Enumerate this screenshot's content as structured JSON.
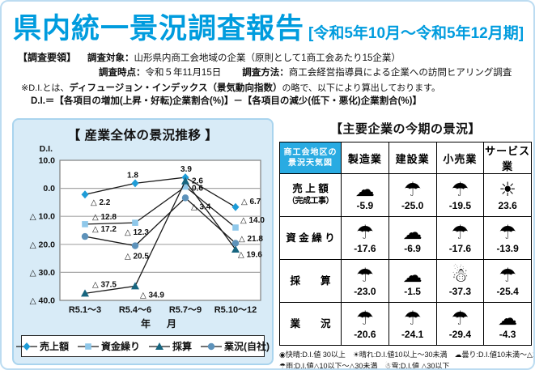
{
  "header": {
    "title": "県内統一景況調査報告",
    "period": "[令和5年10月～令和5年12月期]"
  },
  "survey": {
    "heading": "【調査要領】",
    "target_label": "調査対象：",
    "target_value": "山形県内商工会地域の企業（原則として1商工会あたり15企業）",
    "time_label": "調査時点：",
    "time_value": "令和５年11月15日",
    "method_label": "調査方法：",
    "method_value": "商工会経営指導員による企業への訪問ヒアリング調査"
  },
  "di_note": {
    "line1_prefix": "※D.I.とは、",
    "line1_bold": "ディフュージョン・インデックス（景気動向指数）",
    "line1_suffix": "の略で、以下により算出しております。",
    "formula": "D.I.＝【各項目の増加(上昇・好転)企業割合(%)】－【各項目の減少(低下・悪化)企業割合(%)】"
  },
  "chart_data": {
    "type": "line",
    "title": "【 産業全体の景況推移 】",
    "y_axis_label": "D.I.",
    "x_axis_label": "年　月",
    "categories": [
      "R5.1～3",
      "R5.4～6",
      "R5.7～9",
      "R5.10～12"
    ],
    "ylim": [
      -40,
      10
    ],
    "grid": true,
    "legend_position": "bottom",
    "y_ticks": [
      {
        "value": 10,
        "label": "10.0"
      },
      {
        "value": 0,
        "label": "0.0"
      },
      {
        "value": -10,
        "label": "△ 10.0"
      },
      {
        "value": -20,
        "label": "△ 20.0"
      },
      {
        "value": -30,
        "label": "△ 30.0"
      },
      {
        "value": -40,
        "label": "△ 40.0"
      }
    ],
    "series": [
      {
        "name": "売上額",
        "marker": "diamond",
        "color": "#1e9cd7",
        "values": [
          -2.2,
          1.8,
          3.9,
          -6.7
        ],
        "labels": [
          "△ 2.2",
          "1.8",
          "3.9",
          "△ 6.7"
        ]
      },
      {
        "name": "資金繰り",
        "marker": "square",
        "color": "#8fc8ea",
        "values": [
          -12.8,
          -12.3,
          0.6,
          -14.0
        ],
        "labels": [
          "△ 12.8",
          "△ 12.3",
          "0.6",
          "△ 14.0"
        ]
      },
      {
        "name": "採算",
        "marker": "triangle",
        "color": "#17657f",
        "values": [
          -37.5,
          -34.9,
          2.6,
          -21.8
        ],
        "labels": [
          "△ 37.5",
          "△ 34.9",
          "2.6",
          "△ 21.8"
        ]
      },
      {
        "name": "業況(自社)",
        "marker": "circle",
        "color": "#5d92ba",
        "values": [
          -17.2,
          -20.5,
          -3.4,
          -19.6
        ],
        "labels": [
          "△ 17.2",
          "△ 20.5",
          "△ 3.4",
          "△ 19.6"
        ]
      }
    ]
  },
  "weather_table": {
    "title": "【主要企業の今期の景況】",
    "corner_header": [
      "商工会地区の",
      "景況天気図"
    ],
    "columns": [
      "製造業",
      "建設業",
      "小売業",
      "サービス業"
    ],
    "rows": [
      {
        "label": "売 上 額",
        "label2": "（完成工事）",
        "cells": [
          {
            "icon": "cloud",
            "value": "-5.9"
          },
          {
            "icon": "umbrella",
            "value": "-25.0"
          },
          {
            "icon": "umbrella",
            "value": "-19.5"
          },
          {
            "icon": "sun",
            "value": "23.6"
          }
        ]
      },
      {
        "label": "資 金 繰 り",
        "label2": "",
        "cells": [
          {
            "icon": "umbrella",
            "value": "-17.6"
          },
          {
            "icon": "cloud",
            "value": "-6.9"
          },
          {
            "icon": "umbrella",
            "value": "-17.6"
          },
          {
            "icon": "umbrella",
            "value": "-13.9"
          }
        ]
      },
      {
        "label": "採　　算",
        "label2": "",
        "cells": [
          {
            "icon": "umbrella",
            "value": "-23.0"
          },
          {
            "icon": "cloud",
            "value": "-1.5"
          },
          {
            "icon": "snowman",
            "value": "-37.3"
          },
          {
            "icon": "umbrella",
            "value": "-25.4"
          }
        ]
      },
      {
        "label": "業　　況",
        "label2": "",
        "cells": [
          {
            "icon": "umbrella",
            "value": "-20.6"
          },
          {
            "icon": "umbrella",
            "value": "-24.1"
          },
          {
            "icon": "umbrella",
            "value": "-29.4"
          },
          {
            "icon": "cloud",
            "value": "-4.3"
          }
        ]
      }
    ],
    "footnote_line1": "◉快晴:D.I.値 30以上　☀晴れ:D.I.値10以上～30未満　☁曇り:D.I.値10未満～△10未満",
    "footnote_line2": "☂雨:D.I.値△10以下～△30未満　☃雪:D.I.値 △30以下",
    "icon_glyphs": {
      "sun": "☀",
      "cloud": "☁",
      "umbrella": "☂",
      "snowman": "☃"
    }
  }
}
